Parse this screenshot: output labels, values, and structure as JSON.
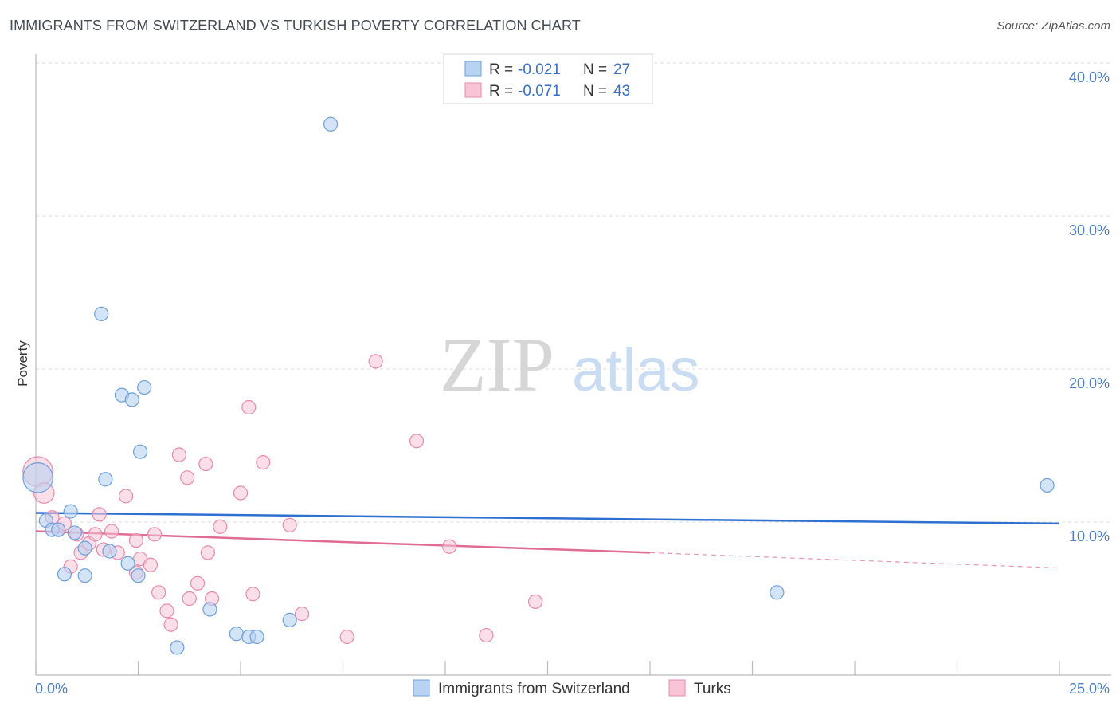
{
  "title": "IMMIGRANTS FROM SWITZERLAND VS TURKISH POVERTY CORRELATION CHART",
  "source": "Source: ZipAtlas.com",
  "colors": {
    "blue_fill": "#b8d2f2",
    "blue_stroke": "#6f9fdc",
    "blue_line": "#2f6fd0",
    "pink_fill": "#f8c4d6",
    "pink_stroke": "#e98aab",
    "pink_line": "#e06b93"
  },
  "chart_data": {
    "type": "scatter",
    "ylabel": "Poverty",
    "x_tick_labels": [
      "0.0%",
      "25.0%"
    ],
    "y_tick_labels": [
      "10.0%",
      "20.0%",
      "30.0%",
      "40.0%"
    ],
    "xlim": [
      0,
      25
    ],
    "ylim": [
      0,
      41
    ],
    "y_gridlines": [
      10,
      20,
      30,
      40
    ],
    "grid": true,
    "legend": {
      "entries": [
        {
          "r_label": "R =",
          "r_value": "-0.021",
          "n_label": "N =",
          "n_value": "27"
        },
        {
          "r_label": "R =",
          "r_value": "-0.071",
          "n_label": "N =",
          "n_value": "43"
        }
      ],
      "placement": "top-center"
    },
    "bottom_legend": [
      "Immigrants from Switzerland",
      "Turks"
    ],
    "watermark": {
      "zip": "ZIP",
      "atlas": "atlas"
    },
    "series": [
      {
        "name": "Immigrants from Switzerland",
        "color": "#b8d2f2",
        "points": [
          [
            0.05,
            12.9,
            2.2
          ],
          [
            0.25,
            10.1,
            1
          ],
          [
            0.4,
            9.5,
            1
          ],
          [
            0.55,
            9.5,
            1
          ],
          [
            0.85,
            10.7,
            1
          ],
          [
            0.95,
            9.3,
            1
          ],
          [
            1.2,
            8.3,
            1
          ],
          [
            1.2,
            6.5,
            1
          ],
          [
            0.7,
            6.6,
            1
          ],
          [
            1.6,
            23.6,
            1
          ],
          [
            1.7,
            12.8,
            1
          ],
          [
            1.8,
            8.1,
            1
          ],
          [
            2.1,
            18.3,
            1
          ],
          [
            2.35,
            18.0,
            1
          ],
          [
            2.65,
            18.8,
            1
          ],
          [
            2.55,
            14.6,
            1
          ],
          [
            2.25,
            7.3,
            1
          ],
          [
            2.5,
            6.5,
            1
          ],
          [
            3.45,
            1.8,
            1
          ],
          [
            4.25,
            4.3,
            1
          ],
          [
            4.9,
            2.7,
            1
          ],
          [
            5.2,
            2.5,
            1
          ],
          [
            5.4,
            2.5,
            1
          ],
          [
            6.2,
            3.6,
            1
          ],
          [
            7.2,
            36.0,
            1
          ],
          [
            18.1,
            5.4,
            1
          ],
          [
            24.7,
            12.4,
            1
          ]
        ],
        "trend": {
          "x1": 0,
          "y1": 10.6,
          "x2": 25,
          "y2": 9.9
        }
      },
      {
        "name": "Turks",
        "color": "#f8c4d6",
        "points": [
          [
            0.05,
            13.3,
            2.2
          ],
          [
            0.2,
            11.9,
            1.5
          ],
          [
            0.4,
            10.3,
            1
          ],
          [
            0.55,
            9.5,
            1
          ],
          [
            0.7,
            9.9,
            1
          ],
          [
            0.85,
            7.1,
            1
          ],
          [
            1.0,
            9.2,
            1
          ],
          [
            1.1,
            8.0,
            1
          ],
          [
            1.3,
            8.6,
            1
          ],
          [
            1.45,
            9.2,
            1
          ],
          [
            1.55,
            10.5,
            1
          ],
          [
            1.65,
            8.2,
            1
          ],
          [
            1.85,
            9.4,
            1
          ],
          [
            2.0,
            8.0,
            1
          ],
          [
            2.2,
            11.7,
            1
          ],
          [
            2.45,
            6.7,
            1
          ],
          [
            2.45,
            8.8,
            1
          ],
          [
            2.55,
            7.6,
            1
          ],
          [
            2.8,
            7.2,
            1
          ],
          [
            2.9,
            9.2,
            1
          ],
          [
            3.0,
            5.4,
            1
          ],
          [
            3.2,
            4.2,
            1
          ],
          [
            3.3,
            3.3,
            1
          ],
          [
            3.5,
            14.4,
            1
          ],
          [
            3.7,
            12.9,
            1
          ],
          [
            3.75,
            5.0,
            1
          ],
          [
            3.95,
            6.0,
            1
          ],
          [
            4.15,
            13.8,
            1
          ],
          [
            4.2,
            8.0,
            1
          ],
          [
            4.3,
            5.0,
            1
          ],
          [
            4.5,
            9.7,
            1
          ],
          [
            5.0,
            11.9,
            1
          ],
          [
            5.2,
            17.5,
            1
          ],
          [
            5.3,
            5.3,
            1
          ],
          [
            5.55,
            13.9,
            1
          ],
          [
            6.2,
            9.8,
            1
          ],
          [
            6.5,
            4.0,
            1
          ],
          [
            7.6,
            2.5,
            1
          ],
          [
            8.3,
            20.5,
            1
          ],
          [
            9.3,
            15.3,
            1
          ],
          [
            10.1,
            8.4,
            1
          ],
          [
            11.0,
            2.6,
            1
          ],
          [
            12.2,
            4.8,
            1
          ]
        ],
        "trend_solid": {
          "x1": 0,
          "y1": 9.4,
          "x2": 15,
          "y2": 8.0
        },
        "trend_dashed": {
          "x1": 15,
          "y1": 8.0,
          "x2": 25,
          "y2": 7.0
        }
      }
    ]
  }
}
